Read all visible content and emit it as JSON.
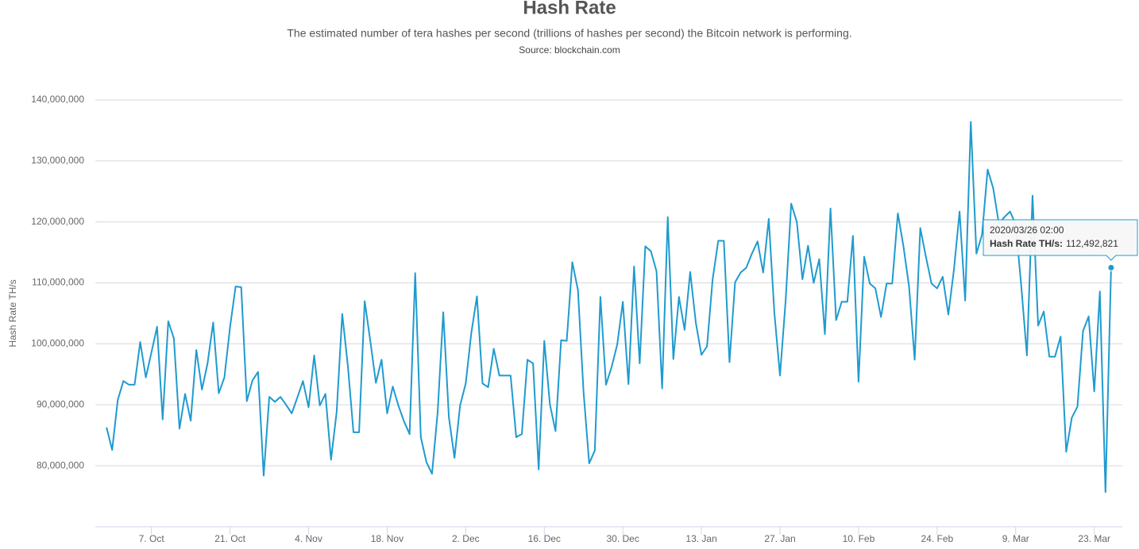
{
  "chart_data": {
    "type": "line",
    "title": "Hash Rate",
    "subtitle": "The estimated number of tera hashes per second (trillions of hashes per second) the Bitcoin network is performing.",
    "source": "Source: blockchain.com",
    "y_label": "Hash Rate TH/s",
    "ylim": [
      70000000,
      140000000
    ],
    "yticks": [
      {
        "value": 80000000,
        "label": "80,000,000"
      },
      {
        "value": 90000000,
        "label": "90,000,000"
      },
      {
        "value": 100000000,
        "label": "100,000,000"
      },
      {
        "value": 110000000,
        "label": "110,000,000"
      },
      {
        "value": 120000000,
        "label": "120,000,000"
      },
      {
        "value": 130000000,
        "label": "130,000,000"
      },
      {
        "value": 140000000,
        "label": "140,000,000"
      }
    ],
    "grid": true,
    "xlim": [
      "2019-09-27",
      "2020-03-28"
    ],
    "xticks": [
      {
        "value": "2019-10-07",
        "label": "7. Oct"
      },
      {
        "value": "2019-10-21",
        "label": "21. Oct"
      },
      {
        "value": "2019-11-04",
        "label": "4. Nov"
      },
      {
        "value": "2019-11-18",
        "label": "18. Nov"
      },
      {
        "value": "2019-12-02",
        "label": "2. Dec"
      },
      {
        "value": "2019-12-16",
        "label": "16. Dec"
      },
      {
        "value": "2019-12-30",
        "label": "30. Dec"
      },
      {
        "value": "2020-01-13",
        "label": "13. Jan"
      },
      {
        "value": "2020-01-27",
        "label": "27. Jan"
      },
      {
        "value": "2020-02-10",
        "label": "10. Feb"
      },
      {
        "value": "2020-02-24",
        "label": "24. Feb"
      },
      {
        "value": "2020-03-09",
        "label": "9. Mar"
      },
      {
        "value": "2020-03-23",
        "label": "23. Mar"
      }
    ],
    "x": [
      "2019-09-29",
      "2019-09-30",
      "2019-10-01",
      "2019-10-02",
      "2019-10-03",
      "2019-10-04",
      "2019-10-05",
      "2019-10-06",
      "2019-10-07",
      "2019-10-08",
      "2019-10-09",
      "2019-10-10",
      "2019-10-11",
      "2019-10-12",
      "2019-10-13",
      "2019-10-14",
      "2019-10-15",
      "2019-10-16",
      "2019-10-17",
      "2019-10-18",
      "2019-10-19",
      "2019-10-20",
      "2019-10-21",
      "2019-10-22",
      "2019-10-23",
      "2019-10-24",
      "2019-10-25",
      "2019-10-26",
      "2019-10-27",
      "2019-10-28",
      "2019-10-29",
      "2019-10-30",
      "2019-10-31",
      "2019-11-01",
      "2019-11-02",
      "2019-11-03",
      "2019-11-04",
      "2019-11-05",
      "2019-11-06",
      "2019-11-07",
      "2019-11-08",
      "2019-11-09",
      "2019-11-10",
      "2019-11-11",
      "2019-11-12",
      "2019-11-13",
      "2019-11-14",
      "2019-11-15",
      "2019-11-16",
      "2019-11-17",
      "2019-11-18",
      "2019-11-19",
      "2019-11-20",
      "2019-11-21",
      "2019-11-22",
      "2019-11-23",
      "2019-11-24",
      "2019-11-25",
      "2019-11-26",
      "2019-11-27",
      "2019-11-28",
      "2019-11-29",
      "2019-11-30",
      "2019-12-01",
      "2019-12-02",
      "2019-12-03",
      "2019-12-04",
      "2019-12-05",
      "2019-12-06",
      "2019-12-07",
      "2019-12-08",
      "2019-12-09",
      "2019-12-10",
      "2019-12-11",
      "2019-12-12",
      "2019-12-13",
      "2019-12-14",
      "2019-12-15",
      "2019-12-16",
      "2019-12-17",
      "2019-12-18",
      "2019-12-19",
      "2019-12-20",
      "2019-12-21",
      "2019-12-22",
      "2019-12-23",
      "2019-12-24",
      "2019-12-25",
      "2019-12-26",
      "2019-12-27",
      "2019-12-28",
      "2019-12-29",
      "2019-12-30",
      "2019-12-31",
      "2020-01-01",
      "2020-01-02",
      "2020-01-03",
      "2020-01-04",
      "2020-01-05",
      "2020-01-06",
      "2020-01-07",
      "2020-01-08",
      "2020-01-09",
      "2020-01-10",
      "2020-01-11",
      "2020-01-12",
      "2020-01-13",
      "2020-01-14",
      "2020-01-15",
      "2020-01-16",
      "2020-01-17",
      "2020-01-18",
      "2020-01-19",
      "2020-01-20",
      "2020-01-21",
      "2020-01-22",
      "2020-01-23",
      "2020-01-24",
      "2020-01-25",
      "2020-01-26",
      "2020-01-27",
      "2020-01-28",
      "2020-01-29",
      "2020-01-30",
      "2020-01-31",
      "2020-02-01",
      "2020-02-02",
      "2020-02-03",
      "2020-02-04",
      "2020-02-05",
      "2020-02-06",
      "2020-02-07",
      "2020-02-08",
      "2020-02-09",
      "2020-02-10",
      "2020-02-11",
      "2020-02-12",
      "2020-02-13",
      "2020-02-14",
      "2020-02-15",
      "2020-02-16",
      "2020-02-17",
      "2020-02-18",
      "2020-02-19",
      "2020-02-20",
      "2020-02-21",
      "2020-02-22",
      "2020-02-23",
      "2020-02-24",
      "2020-02-25",
      "2020-02-26",
      "2020-02-27",
      "2020-02-28",
      "2020-02-29",
      "2020-03-01",
      "2020-03-02",
      "2020-03-03",
      "2020-03-04",
      "2020-03-05",
      "2020-03-06",
      "2020-03-07",
      "2020-03-08",
      "2020-03-09",
      "2020-03-10",
      "2020-03-11",
      "2020-03-12",
      "2020-03-13",
      "2020-03-14",
      "2020-03-15",
      "2020-03-16",
      "2020-03-17",
      "2020-03-18",
      "2020-03-19",
      "2020-03-20",
      "2020-03-21",
      "2020-03-22",
      "2020-03-23",
      "2020-03-24",
      "2020-03-25",
      "2020-03-26"
    ],
    "series": [
      {
        "color": "#1f9bcf",
        "values": [
          86300000,
          82600000,
          90800000,
          93900000,
          93300000,
          93300000,
          100300000,
          94500000,
          98600000,
          102800000,
          87600000,
          103700000,
          100900000,
          86100000,
          91800000,
          87400000,
          99000000,
          92500000,
          96800000,
          103500000,
          91900000,
          94500000,
          102700000,
          109400000,
          109300000,
          90600000,
          94000000,
          95400000,
          78400000,
          91300000,
          90500000,
          91300000,
          90000000,
          88600000,
          91200000,
          93900000,
          89600000,
          98100000,
          89900000,
          91800000,
          81000000,
          88800000,
          104900000,
          96400000,
          85500000,
          85500000,
          107000000,
          100500000,
          93600000,
          97400000,
          88600000,
          93000000,
          89900000,
          87300000,
          85200000,
          111600000,
          84700000,
          80600000,
          78700000,
          88800000,
          105200000,
          88000000,
          81300000,
          89900000,
          93500000,
          101800000,
          107800000,
          93500000,
          92900000,
          99200000,
          94800000,
          94800000,
          94800000,
          84700000,
          85200000,
          97400000,
          96800000,
          79400000,
          100500000,
          90100000,
          85700000,
          100600000,
          100500000,
          113400000,
          108800000,
          92100000,
          80400000,
          82500000,
          107700000,
          93300000,
          96200000,
          99900000,
          106900000,
          93400000,
          112700000,
          96800000,
          116000000,
          115200000,
          111900000,
          92700000,
          120800000,
          97500000,
          107700000,
          102300000,
          111800000,
          103500000,
          98200000,
          99600000,
          110600000,
          116900000,
          116900000,
          97000000,
          110100000,
          111700000,
          112500000,
          114800000,
          116800000,
          111700000,
          120500000,
          105100000,
          94800000,
          107000000,
          123000000,
          120000000,
          110600000,
          116100000,
          110000000,
          113900000,
          101600000,
          122200000,
          103900000,
          106900000,
          106900000,
          117700000,
          93800000,
          114300000,
          109900000,
          109100000,
          104400000,
          109900000,
          109900000,
          121400000,
          116000000,
          109400000,
          97400000,
          119000000,
          114300000,
          109900000,
          109100000,
          111000000,
          104800000,
          112200000,
          121700000,
          107100000,
          136400000,
          114800000,
          117900000,
          128600000,
          125500000,
          119700000,
          120800000,
          121700000,
          119600000,
          109400000,
          98100000,
          124300000,
          103000000,
          105300000,
          97900000,
          97900000,
          101200000,
          82300000,
          87900000,
          89700000,
          102100000,
          104500000,
          92200000,
          108600000,
          75700000,
          112492821
        ]
      }
    ],
    "tooltip": {
      "title": "2020/03/26 02:00",
      "label": "Hash Rate TH/s:",
      "value_label": "112,492,821"
    }
  }
}
